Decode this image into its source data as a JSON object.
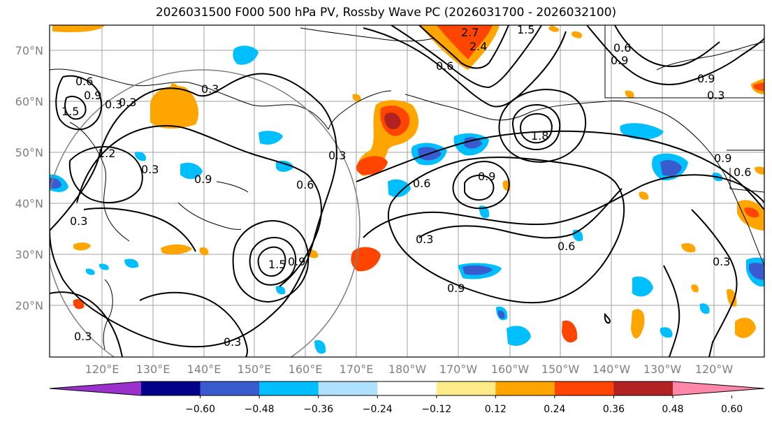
{
  "title": "2026031500 F000 500 hPa PV, Rossby Wave PC (2026031700 - 2026032100)",
  "lat_labels": [
    "70°N",
    "60°N",
    "50°N",
    "40°N",
    "30°N",
    "20°N"
  ],
  "lon_labels": [
    "120°E",
    "130°E",
    "140°E",
    "150°E",
    "160°E",
    "170°E",
    "180°W",
    "170°W",
    "160°W",
    "150°W",
    "140°W",
    "130°W",
    "120°W"
  ],
  "colorbar": {
    "colors": [
      "#9932cc",
      "#00008b",
      "#3a5bd0",
      "#00bfff",
      "#b0e0ff",
      "#ffffff",
      "#ffeb8a",
      "#ffa500",
      "#ff4500",
      "#b22222",
      "#ff88aa"
    ],
    "ticks": [
      "−0.60",
      "−0.48",
      "−0.36",
      "−0.24",
      "−0.12",
      "0.12",
      "0.24",
      "0.36",
      "0.48",
      "0.60"
    ]
  },
  "contour_labels": [
    "2.7",
    "2.4",
    "1.5",
    "0.6",
    "0.9",
    "0.6",
    "0.9",
    "0.3",
    "0.6",
    "0.9",
    "0.3",
    "1.5",
    "0.3",
    "1.2",
    "0.3",
    "0.9",
    "0.3",
    "0.6",
    "0.3",
    "1.5",
    "0.9",
    "0.6",
    "0.9",
    "0.3",
    "0.9",
    "0.3",
    "0.6",
    "0.3",
    "0.3",
    "1.8",
    "0.9",
    "0.6",
    "0.3"
  ]
}
